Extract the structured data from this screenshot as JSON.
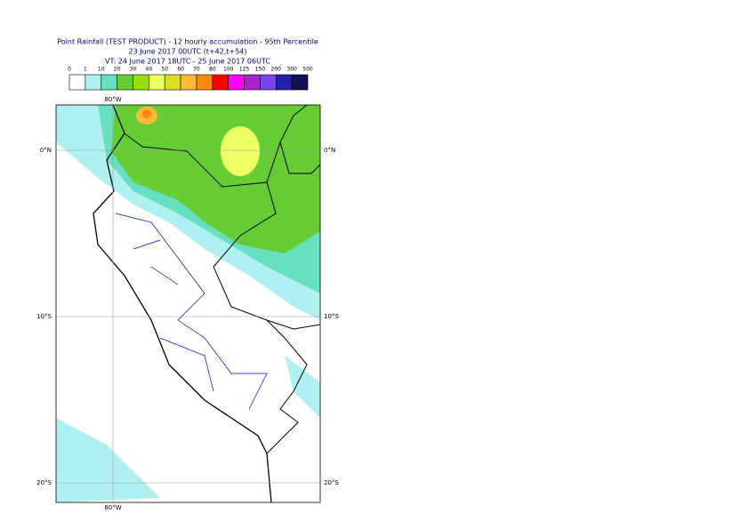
{
  "header": {
    "title": [
      "Point Rainfall (TEST PRODUCT) - 12 hourly accumulation - 95th Percentile",
      "23 June 2017 00UTC (t+42,t+54)",
      "VT: 24 June 2017 18UTC - 25 June 2017 06UTC"
    ]
  },
  "legend": {
    "labels": [
      "0",
      "1",
      "10",
      "20",
      "30",
      "40",
      "50",
      "60",
      "70",
      "80",
      "100",
      "125",
      "150",
      "200",
      "300",
      "500"
    ],
    "colors": [
      "#ffffff",
      "#b0f0f0",
      "#66e0c0",
      "#66cc33",
      "#99dd11",
      "#eeff66",
      "#dddd22",
      "#ffbb33",
      "#ff8811",
      "#ff0000",
      "#ff00ff",
      "#aa22cc",
      "#7744ee",
      "#2222aa",
      "#111155"
    ]
  },
  "map": {
    "lon_label": "80°W",
    "lat_labels": [
      "0°N",
      "10°S",
      "20°S"
    ]
  }
}
